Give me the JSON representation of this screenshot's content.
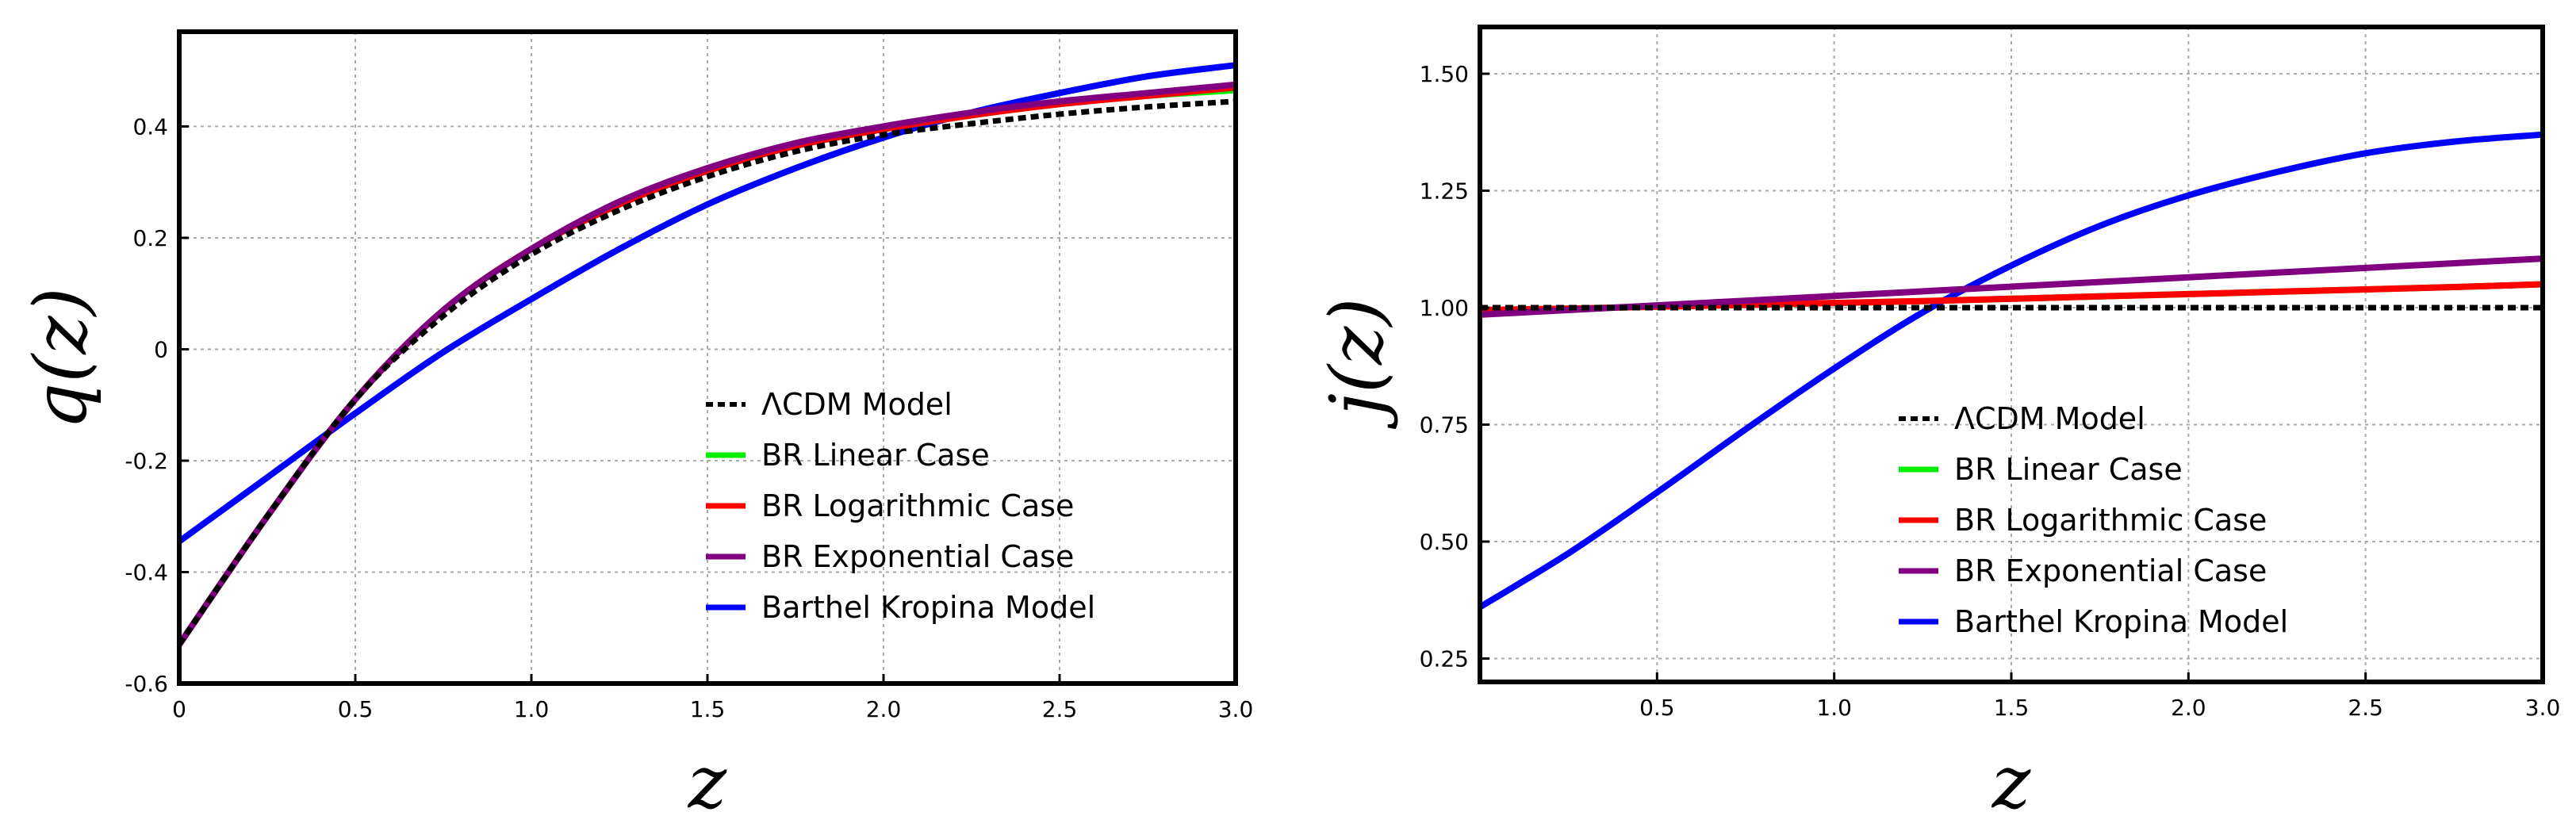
{
  "chart_data": [
    {
      "type": "line",
      "ylabel": "q(z)",
      "xlabel": "z",
      "xlim": [
        0,
        3
      ],
      "ylim": [
        -0.6,
        0.57
      ],
      "xticks": [
        0,
        0.5,
        1.0,
        1.5,
        2.0,
        2.5,
        3.0
      ],
      "xtick_labels": [
        "0",
        "0.5",
        "1.0",
        "1.5",
        "2.0",
        "2.5",
        "3.0"
      ],
      "yticks": [
        -0.6,
        -0.4,
        -0.2,
        0,
        0.2,
        0.4
      ],
      "ytick_labels": [
        "-0.6",
        "-0.4",
        "-0.2",
        "0",
        "0.2",
        "0.4"
      ],
      "grid": true,
      "legend_position": "bottom-right",
      "x": [
        0,
        0.25,
        0.5,
        0.75,
        1.0,
        1.25,
        1.5,
        1.75,
        2.0,
        2.25,
        2.5,
        2.75,
        3.0
      ],
      "series": [
        {
          "name": "ΛCDM Model",
          "color": "#000000",
          "dash": "dotted",
          "values": [
            -0.53,
            -0.3,
            -0.09,
            0.06,
            0.17,
            0.25,
            0.31,
            0.355,
            0.385,
            0.405,
            0.422,
            0.435,
            0.445
          ]
        },
        {
          "name": "BR Linear Case",
          "color": "#00ee00",
          "dash": "solid",
          "values": [
            -0.53,
            -0.3,
            -0.09,
            0.07,
            0.18,
            0.26,
            0.32,
            0.365,
            0.395,
            0.42,
            0.44,
            0.455,
            0.465
          ]
        },
        {
          "name": "BR Logarithmic Case",
          "color": "#ff0000",
          "dash": "solid",
          "values": [
            -0.53,
            -0.3,
            -0.09,
            0.07,
            0.18,
            0.26,
            0.32,
            0.365,
            0.395,
            0.42,
            0.44,
            0.455,
            0.47
          ]
        },
        {
          "name": "BR Exponential Case",
          "color": "#800080",
          "dash": "solid",
          "values": [
            -0.53,
            -0.3,
            -0.09,
            0.07,
            0.18,
            0.265,
            0.325,
            0.37,
            0.4,
            0.425,
            0.445,
            0.46,
            0.475
          ]
        },
        {
          "name": "Barthel Kropina Model",
          "color": "#0000ff",
          "dash": "solid",
          "values": [
            -0.345,
            -0.23,
            -0.115,
            -0.005,
            0.09,
            0.18,
            0.26,
            0.325,
            0.38,
            0.425,
            0.46,
            0.49,
            0.51
          ]
        }
      ]
    },
    {
      "type": "line",
      "ylabel": "j(z)",
      "xlabel": "z",
      "xlim": [
        0,
        3
      ],
      "ylim": [
        0.2,
        1.6
      ],
      "xticks": [
        0.5,
        1.0,
        1.5,
        2.0,
        2.5,
        3.0
      ],
      "xtick_labels": [
        "0.5",
        "1.0",
        "1.5",
        "2.0",
        "2.5",
        "3.0"
      ],
      "yticks": [
        0.25,
        0.5,
        0.75,
        1.0,
        1.25,
        1.5
      ],
      "ytick_labels": [
        "0.25",
        "0.50",
        "0.75",
        "1.00",
        "1.25",
        "1.50"
      ],
      "grid": true,
      "legend_position": "bottom-right",
      "x": [
        0,
        0.25,
        0.5,
        0.75,
        1.0,
        1.25,
        1.5,
        1.75,
        2.0,
        2.25,
        2.5,
        2.75,
        3.0
      ],
      "series": [
        {
          "name": "ΛCDM Model",
          "color": "#000000",
          "dash": "dotted",
          "values": [
            1.0,
            1.0,
            1.0,
            1.0,
            1.0,
            1.0,
            1.0,
            1.0,
            1.0,
            1.0,
            1.0,
            1.0,
            1.0
          ]
        },
        {
          "name": "BR Linear Case",
          "color": "#00ee00",
          "dash": "solid",
          "values": [
            0.995,
            0.998,
            1.002,
            1.006,
            1.01,
            1.014,
            1.019,
            1.024,
            1.029,
            1.034,
            1.039,
            1.044,
            1.05
          ]
        },
        {
          "name": "BR Logarithmic Case",
          "color": "#ff0000",
          "dash": "solid",
          "values": [
            0.995,
            0.998,
            1.002,
            1.006,
            1.01,
            1.014,
            1.019,
            1.024,
            1.029,
            1.034,
            1.039,
            1.044,
            1.05
          ]
        },
        {
          "name": "BR Exponential Case",
          "color": "#800080",
          "dash": "solid",
          "values": [
            0.985,
            0.995,
            1.005,
            1.015,
            1.025,
            1.035,
            1.045,
            1.055,
            1.065,
            1.075,
            1.085,
            1.095,
            1.105
          ]
        },
        {
          "name": "Barthel Kropina Model",
          "color": "#0000ff",
          "dash": "solid",
          "values": [
            0.36,
            0.475,
            0.605,
            0.74,
            0.87,
            0.99,
            1.09,
            1.175,
            1.24,
            1.29,
            1.33,
            1.355,
            1.37
          ]
        }
      ]
    }
  ]
}
